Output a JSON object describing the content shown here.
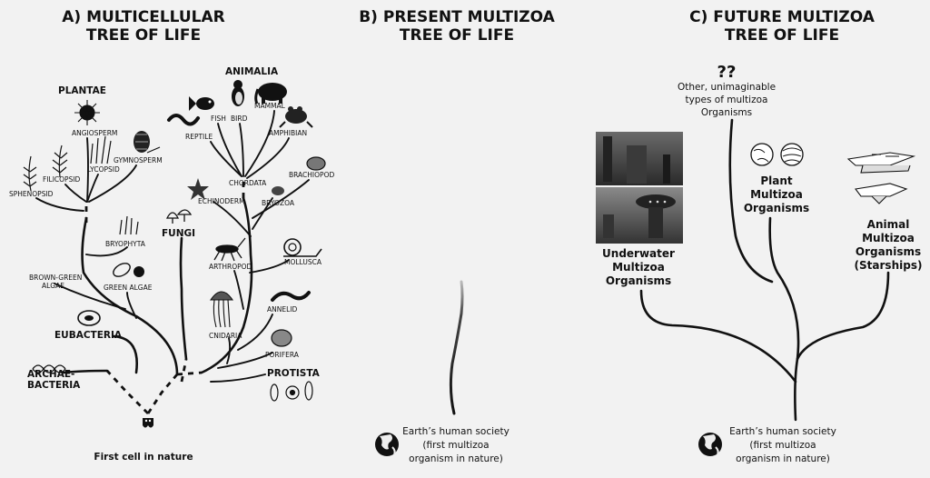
{
  "panel_a": {
    "title_line1": "A) MULTICELLULAR",
    "title_line2": "TREE OF LIFE",
    "root_caption": "First cell in nature",
    "groups": {
      "plantae": "PLANTAE",
      "animalia": "ANIMALIA",
      "fungi": "FUNGI",
      "eubacteria": "EUBACTERIA",
      "archaebacteria_1": "ARCHAE-",
      "archaebacteria_2": "BACTERIA",
      "protista": "PROTISTA"
    },
    "labels": {
      "angiosperm": "ANGIOSPERM",
      "gymnosperm": "GYMNOSPERM",
      "lycopsid": "LYCOPSID",
      "filicopsid": "FILICOPSID",
      "sphenopsid": "SPHENOPSID",
      "bryophyta": "BRYOPHYTA",
      "brown_green_1": "BROWN-GREEN",
      "brown_green_2": "ALGAE",
      "green_algae": "GREEN ALGAE",
      "fish": "FISH",
      "bird": "BIRD",
      "mammal": "MAMMAL",
      "reptile": "REPTILE",
      "amphibian": "AMPHIBIAN",
      "chordata": "CHORDATA",
      "brachiopod": "BRACHIOPOD",
      "echinoderm": "ECHINODERM",
      "bryozoa": "BRYOZOA",
      "arthropod": "ARTHROPOD",
      "mollusca": "MOLLUSCA",
      "annelid": "ANNELID",
      "cnidaria": "CNIDARIA",
      "porifera": "PORIFERA"
    }
  },
  "panel_b": {
    "title_line1": "B) PRESENT MULTIZOA",
    "title_line2": "TREE OF LIFE",
    "caption_1": "Earth’s human society",
    "caption_2": "(first multizoa",
    "caption_3": "organism in nature)"
  },
  "panel_c": {
    "title_line1": "C) FUTURE MULTIZOA",
    "title_line2": "TREE OF LIFE",
    "unknown_mark": "??",
    "other_1": "Other, unimaginable",
    "other_2": "types of multizoa",
    "other_3": "Organisms",
    "plant_1": "Plant",
    "plant_2": "Multizoa",
    "plant_3": "Organisms",
    "underwater_1": "Underwater",
    "underwater_2": "Multizoa",
    "underwater_3": "Organisms",
    "animal_1": "Animal",
    "animal_2": "Multizoa",
    "animal_3": "Organisms",
    "animal_4": "(Starships)",
    "caption_1": "Earth’s human society",
    "caption_2": "(first multizoa",
    "caption_3": "organism in nature)"
  },
  "colors": {
    "background": "#f2f2f2",
    "ink": "#111111"
  },
  "icons": [
    "globe-icon",
    "plant-icon",
    "animal-icon",
    "ameba-icon",
    "dna-icon",
    "snail-icon",
    "jellyfish-icon",
    "starship-icon",
    "planet-icon",
    "underwater-city-image"
  ]
}
